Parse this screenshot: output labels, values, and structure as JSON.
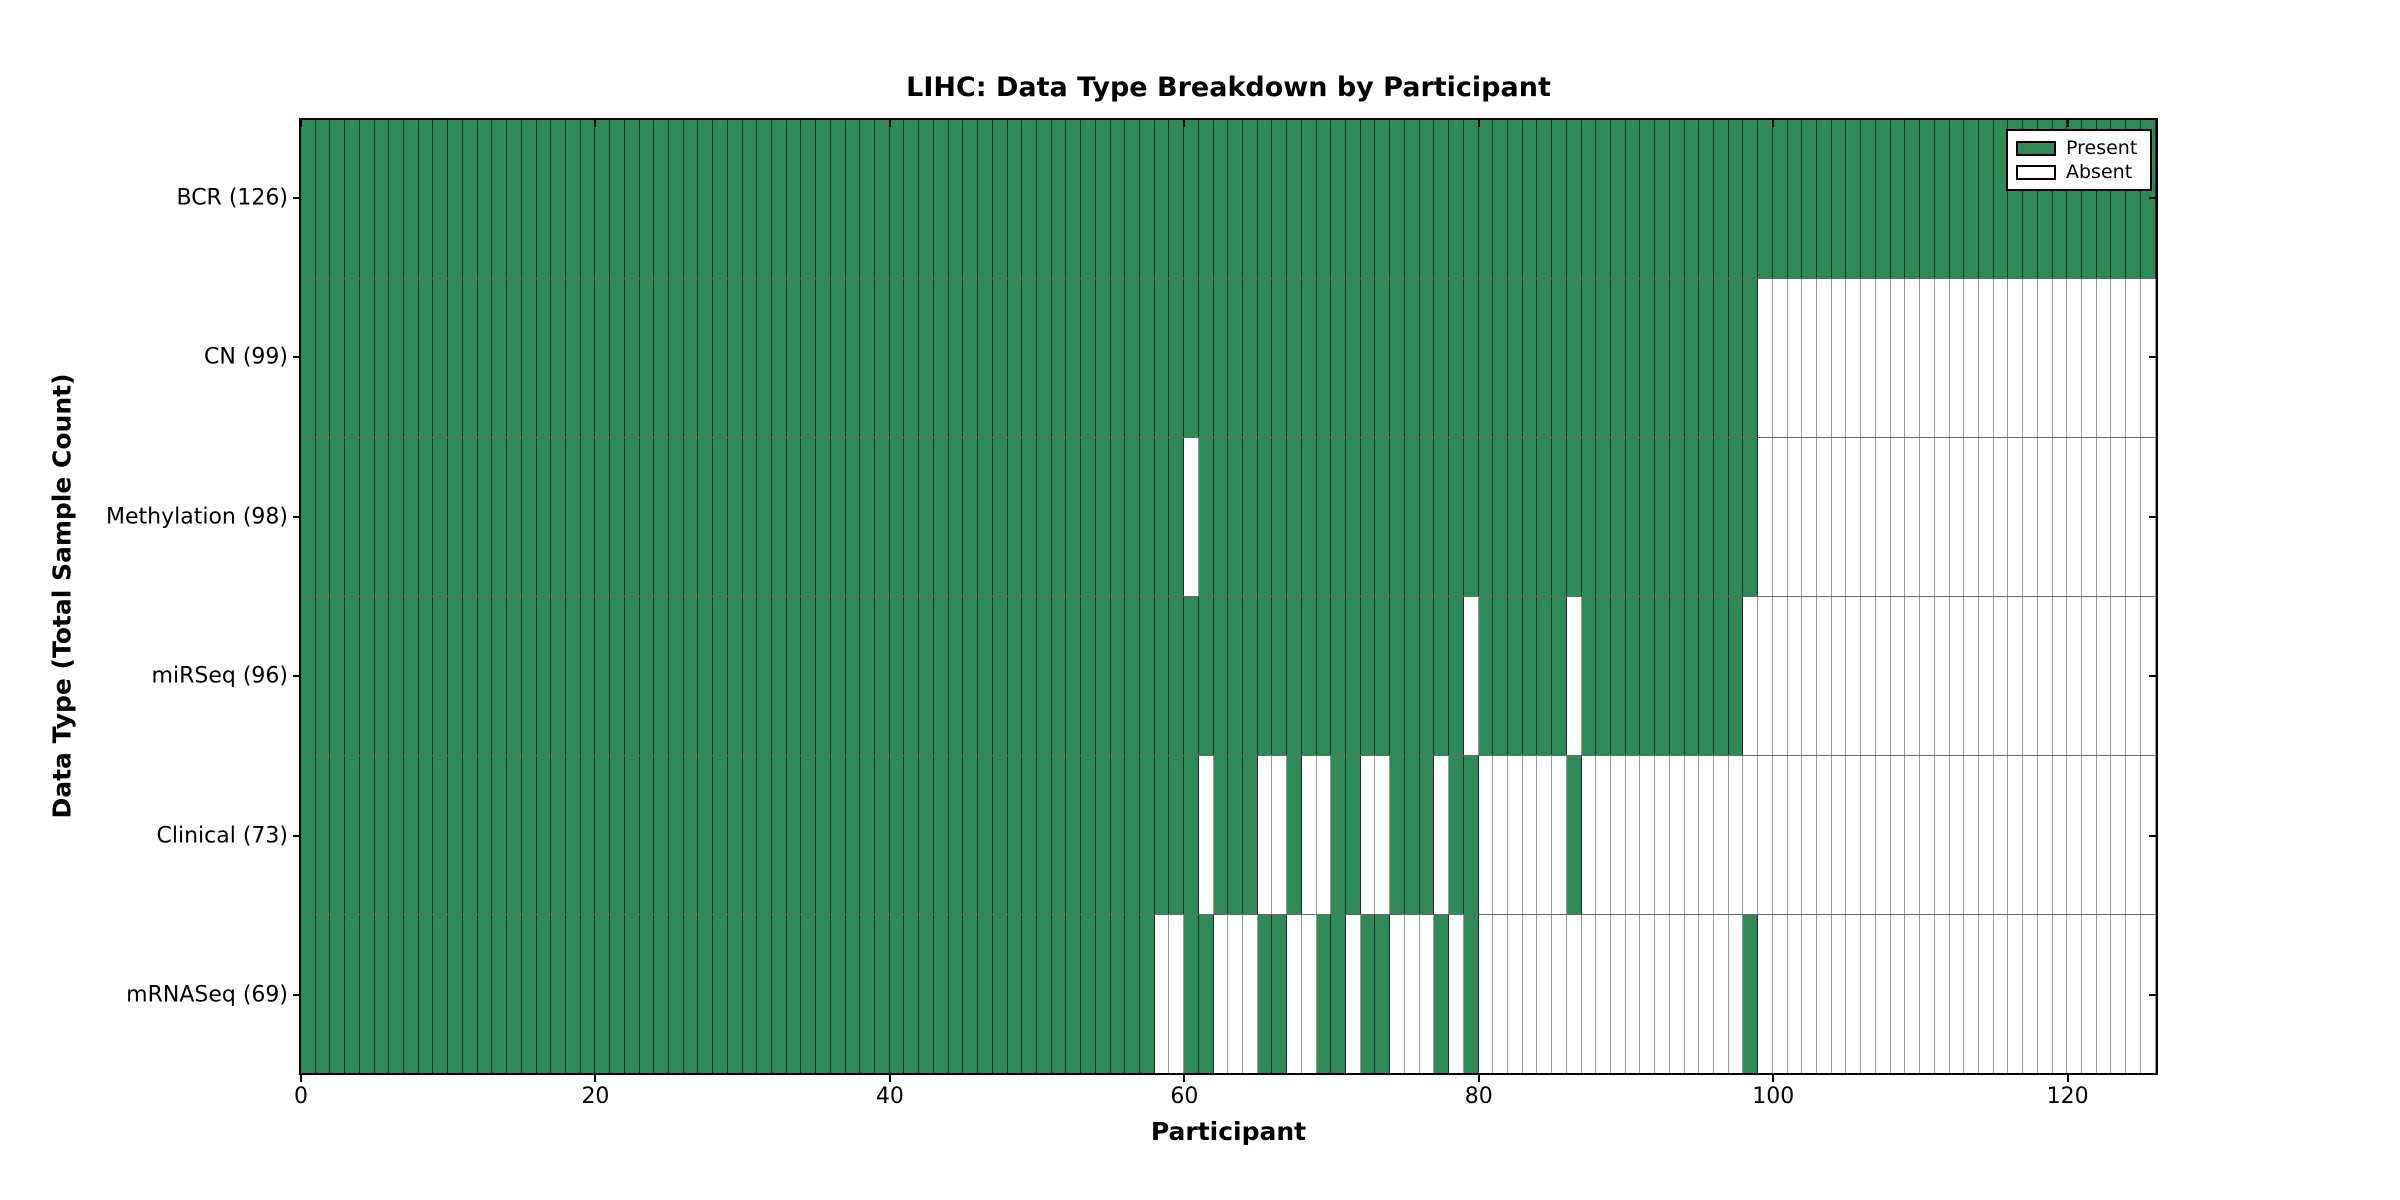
{
  "figure": {
    "title": "LIHC: Data Type Breakdown by Participant",
    "x_axis_label": "Participant",
    "y_axis_label": "Data Type (Total Sample Count)"
  },
  "colors": {
    "present": "#2e8b57",
    "absent": "#ffffff",
    "present_edge": "#141e18",
    "absent_edge": "#9a9a9a",
    "spine": "#000000"
  },
  "chart_data": {
    "type": "heatmap",
    "title": "LIHC: Data Type Breakdown by Participant",
    "xlabel": "Participant",
    "ylabel": "Data Type (Total Sample Count)",
    "x_ticks": [
      0,
      20,
      40,
      60,
      80,
      100,
      120
    ],
    "xlim": [
      0,
      126
    ],
    "n_participants": 126,
    "legend": [
      "Present",
      "Absent"
    ],
    "legend_position": "upper right",
    "grid": false,
    "rows": [
      {
        "label": "BCR (126)",
        "data_type": "BCR",
        "total_samples": 126,
        "present_ranges": [
          [
            0,
            125
          ]
        ]
      },
      {
        "label": "CN (99)",
        "data_type": "CN",
        "total_samples": 99,
        "present_ranges": [
          [
            0,
            98
          ]
        ]
      },
      {
        "label": "Methylation (98)",
        "data_type": "Methylation",
        "total_samples": 98,
        "present_ranges": [
          [
            0,
            59
          ],
          [
            61,
            98
          ]
        ]
      },
      {
        "label": "miRSeq (96)",
        "data_type": "miRSeq",
        "total_samples": 96,
        "present_ranges": [
          [
            0,
            78
          ],
          [
            80,
            85
          ],
          [
            87,
            97
          ]
        ]
      },
      {
        "label": "Clinical (73)",
        "data_type": "Clinical",
        "total_samples": 73,
        "present_ranges": [
          [
            0,
            60
          ],
          [
            62,
            64
          ],
          [
            67,
            67
          ],
          [
            70,
            71
          ],
          [
            74,
            76
          ],
          [
            78,
            79
          ],
          [
            86,
            86
          ]
        ]
      },
      {
        "label": "mRNASeq (69)",
        "data_type": "mRNASeq",
        "total_samples": 69,
        "present_ranges": [
          [
            0,
            57
          ],
          [
            60,
            61
          ],
          [
            65,
            66
          ],
          [
            69,
            70
          ],
          [
            72,
            73
          ],
          [
            77,
            77
          ],
          [
            79,
            79
          ],
          [
            98,
            98
          ]
        ]
      }
    ]
  }
}
